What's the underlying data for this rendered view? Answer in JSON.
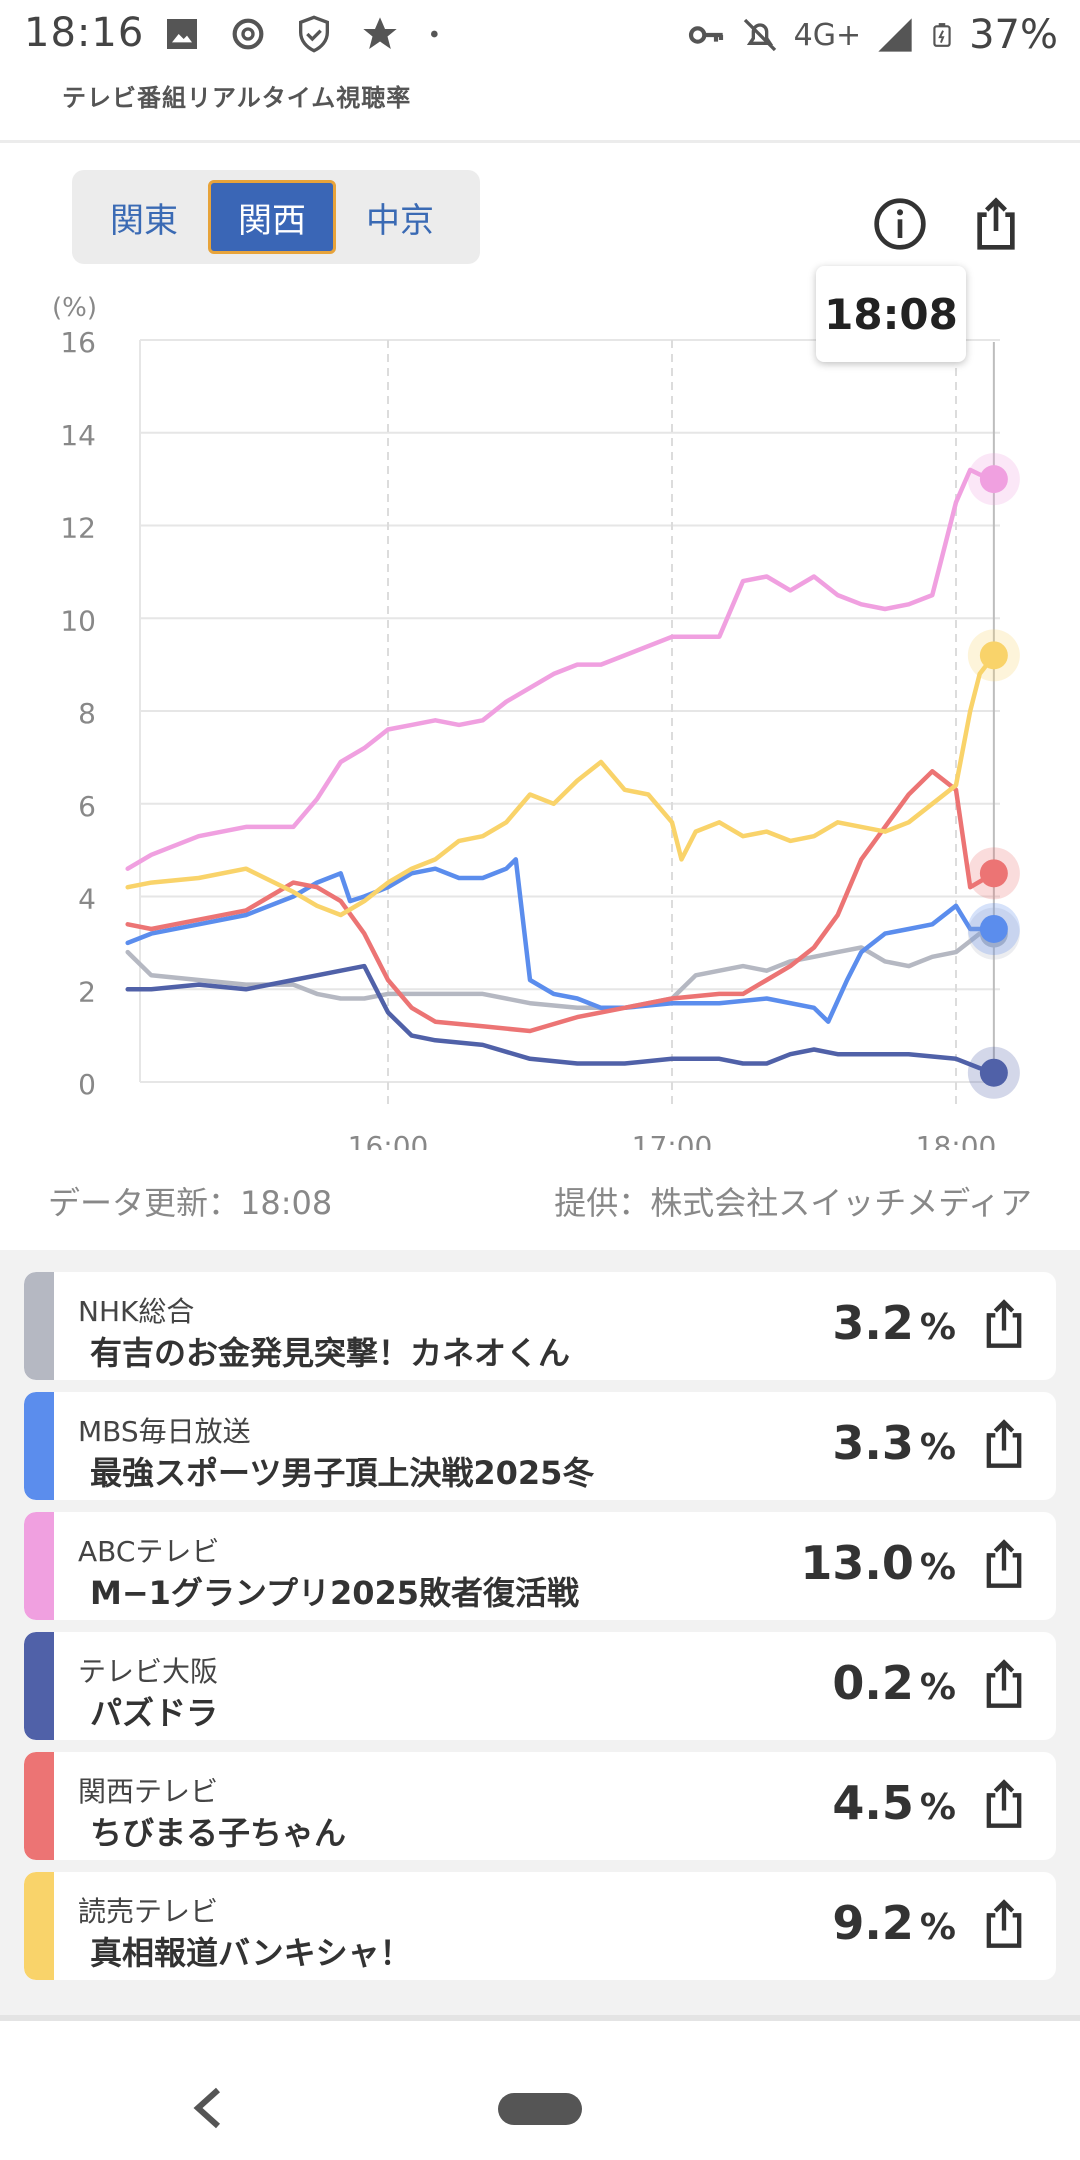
{
  "status_bar": {
    "time": "18:16",
    "network": "4G+",
    "battery": "37%",
    "icons": [
      "image-icon",
      "threads-icon",
      "shield-icon",
      "star-icon",
      "dot-icon",
      "key-icon",
      "bell-off-icon",
      "signal-icon",
      "battery-icon"
    ]
  },
  "header": {
    "subtitle": "テレビ番組リアルタイム視聴率"
  },
  "regions": {
    "tabs": [
      "関東",
      "関西",
      "中京"
    ],
    "selected": "関西"
  },
  "chart_actions": {
    "icons": [
      "info-icon",
      "share-icon"
    ]
  },
  "tooltip": {
    "time": "18:08"
  },
  "chart_data": {
    "type": "line",
    "unit_label": "(%)",
    "x_ticks": [
      "16:00",
      "17:00",
      "18:00"
    ],
    "x_range": [
      "15:05",
      "18:08"
    ],
    "y_ticks": [
      "0",
      "2",
      "4",
      "6",
      "8",
      "10",
      "12",
      "14",
      "16"
    ],
    "ylim": [
      0,
      16
    ],
    "grid": true,
    "current_time": "18:08",
    "series": [
      {
        "name": "NHK総合",
        "color": "#b5b8c2",
        "points": [
          [
            "15:05",
            2.8
          ],
          [
            "15:10",
            2.3
          ],
          [
            "15:20",
            2.2
          ],
          [
            "15:30",
            2.1
          ],
          [
            "15:40",
            2.1
          ],
          [
            "15:45",
            1.9
          ],
          [
            "15:50",
            1.8
          ],
          [
            "15:55",
            1.8
          ],
          [
            "16:00",
            1.9
          ],
          [
            "16:05",
            1.9
          ],
          [
            "16:10",
            1.9
          ],
          [
            "16:15",
            1.9
          ],
          [
            "16:20",
            1.9
          ],
          [
            "16:30",
            1.7
          ],
          [
            "16:40",
            1.6
          ],
          [
            "16:50",
            1.6
          ],
          [
            "17:00",
            1.8
          ],
          [
            "17:05",
            2.3
          ],
          [
            "17:10",
            2.4
          ],
          [
            "17:15",
            2.5
          ],
          [
            "17:20",
            2.4
          ],
          [
            "17:25",
            2.6
          ],
          [
            "17:30",
            2.7
          ],
          [
            "17:35",
            2.8
          ],
          [
            "17:40",
            2.9
          ],
          [
            "17:45",
            2.6
          ],
          [
            "17:50",
            2.5
          ],
          [
            "17:55",
            2.7
          ],
          [
            "18:00",
            2.8
          ],
          [
            "18:05",
            3.2
          ],
          [
            "18:08",
            3.2
          ]
        ]
      },
      {
        "name": "MBS毎日放送",
        "color": "#5b8ded",
        "points": [
          [
            "15:05",
            3.0
          ],
          [
            "15:10",
            3.2
          ],
          [
            "15:20",
            3.4
          ],
          [
            "15:30",
            3.6
          ],
          [
            "15:40",
            4.0
          ],
          [
            "15:45",
            4.3
          ],
          [
            "15:50",
            4.5
          ],
          [
            "15:52",
            3.9
          ],
          [
            "15:55",
            4.0
          ],
          [
            "16:00",
            4.2
          ],
          [
            "16:05",
            4.5
          ],
          [
            "16:10",
            4.6
          ],
          [
            "16:15",
            4.4
          ],
          [
            "16:20",
            4.4
          ],
          [
            "16:25",
            4.6
          ],
          [
            "16:27",
            4.8
          ],
          [
            "16:30",
            2.2
          ],
          [
            "16:35",
            1.9
          ],
          [
            "16:40",
            1.8
          ],
          [
            "16:45",
            1.6
          ],
          [
            "16:50",
            1.6
          ],
          [
            "17:00",
            1.7
          ],
          [
            "17:10",
            1.7
          ],
          [
            "17:20",
            1.8
          ],
          [
            "17:30",
            1.6
          ],
          [
            "17:33",
            1.3
          ],
          [
            "17:37",
            2.2
          ],
          [
            "17:40",
            2.8
          ],
          [
            "17:45",
            3.2
          ],
          [
            "17:50",
            3.3
          ],
          [
            "17:55",
            3.4
          ],
          [
            "18:00",
            3.8
          ],
          [
            "18:03",
            3.3
          ],
          [
            "18:08",
            3.3
          ]
        ]
      },
      {
        "name": "ABCテレビ",
        "color": "#f0a0e0",
        "points": [
          [
            "15:05",
            4.6
          ],
          [
            "15:10",
            4.9
          ],
          [
            "15:20",
            5.3
          ],
          [
            "15:25",
            5.4
          ],
          [
            "15:30",
            5.5
          ],
          [
            "15:35",
            5.5
          ],
          [
            "15:40",
            5.5
          ],
          [
            "15:45",
            6.1
          ],
          [
            "15:50",
            6.9
          ],
          [
            "15:55",
            7.2
          ],
          [
            "16:00",
            7.6
          ],
          [
            "16:05",
            7.7
          ],
          [
            "16:10",
            7.8
          ],
          [
            "16:15",
            7.7
          ],
          [
            "16:20",
            7.8
          ],
          [
            "16:25",
            8.2
          ],
          [
            "16:30",
            8.5
          ],
          [
            "16:35",
            8.8
          ],
          [
            "16:40",
            9.0
          ],
          [
            "16:45",
            9.0
          ],
          [
            "16:50",
            9.2
          ],
          [
            "17:00",
            9.6
          ],
          [
            "17:05",
            9.6
          ],
          [
            "17:10",
            9.6
          ],
          [
            "17:15",
            10.8
          ],
          [
            "17:20",
            10.9
          ],
          [
            "17:25",
            10.6
          ],
          [
            "17:30",
            10.9
          ],
          [
            "17:35",
            10.5
          ],
          [
            "17:40",
            10.3
          ],
          [
            "17:45",
            10.2
          ],
          [
            "17:50",
            10.3
          ],
          [
            "17:55",
            10.5
          ],
          [
            "18:00",
            12.5
          ],
          [
            "18:03",
            13.2
          ],
          [
            "18:05",
            13.1
          ],
          [
            "18:08",
            13.0
          ]
        ]
      },
      {
        "name": "テレビ大阪",
        "color": "#5061a8",
        "points": [
          [
            "15:05",
            2.0
          ],
          [
            "15:10",
            2.0
          ],
          [
            "15:20",
            2.1
          ],
          [
            "15:30",
            2.0
          ],
          [
            "15:40",
            2.2
          ],
          [
            "15:50",
            2.4
          ],
          [
            "15:55",
            2.5
          ],
          [
            "16:00",
            1.5
          ],
          [
            "16:05",
            1.0
          ],
          [
            "16:10",
            0.9
          ],
          [
            "16:20",
            0.8
          ],
          [
            "16:30",
            0.5
          ],
          [
            "16:40",
            0.4
          ],
          [
            "16:50",
            0.4
          ],
          [
            "17:00",
            0.5
          ],
          [
            "17:10",
            0.5
          ],
          [
            "17:15",
            0.4
          ],
          [
            "17:20",
            0.4
          ],
          [
            "17:25",
            0.6
          ],
          [
            "17:30",
            0.7
          ],
          [
            "17:35",
            0.6
          ],
          [
            "17:40",
            0.6
          ],
          [
            "17:50",
            0.6
          ],
          [
            "18:00",
            0.5
          ],
          [
            "18:05",
            0.3
          ],
          [
            "18:08",
            0.2
          ]
        ]
      },
      {
        "name": "関西テレビ",
        "color": "#ec7474",
        "points": [
          [
            "15:05",
            3.4
          ],
          [
            "15:10",
            3.3
          ],
          [
            "15:20",
            3.5
          ],
          [
            "15:30",
            3.7
          ],
          [
            "15:35",
            4.0
          ],
          [
            "15:40",
            4.3
          ],
          [
            "15:45",
            4.2
          ],
          [
            "15:50",
            3.9
          ],
          [
            "15:55",
            3.2
          ],
          [
            "16:00",
            2.2
          ],
          [
            "16:05",
            1.6
          ],
          [
            "16:10",
            1.3
          ],
          [
            "16:20",
            1.2
          ],
          [
            "16:30",
            1.1
          ],
          [
            "16:40",
            1.4
          ],
          [
            "16:50",
            1.6
          ],
          [
            "17:00",
            1.8
          ],
          [
            "17:10",
            1.9
          ],
          [
            "17:15",
            1.9
          ],
          [
            "17:20",
            2.2
          ],
          [
            "17:25",
            2.5
          ],
          [
            "17:30",
            2.9
          ],
          [
            "17:35",
            3.6
          ],
          [
            "17:40",
            4.8
          ],
          [
            "17:45",
            5.5
          ],
          [
            "17:50",
            6.2
          ],
          [
            "17:55",
            6.7
          ],
          [
            "18:00",
            6.3
          ],
          [
            "18:03",
            4.2
          ],
          [
            "18:08",
            4.5
          ]
        ]
      },
      {
        "name": "読売テレビ",
        "color": "#f9d36a",
        "points": [
          [
            "15:05",
            4.2
          ],
          [
            "15:10",
            4.3
          ],
          [
            "15:20",
            4.4
          ],
          [
            "15:30",
            4.6
          ],
          [
            "15:40",
            4.1
          ],
          [
            "15:45",
            3.8
          ],
          [
            "15:50",
            3.6
          ],
          [
            "15:55",
            3.9
          ],
          [
            "16:00",
            4.3
          ],
          [
            "16:05",
            4.6
          ],
          [
            "16:10",
            4.8
          ],
          [
            "16:15",
            5.2
          ],
          [
            "16:20",
            5.3
          ],
          [
            "16:25",
            5.6
          ],
          [
            "16:30",
            6.2
          ],
          [
            "16:35",
            6.0
          ],
          [
            "16:40",
            6.5
          ],
          [
            "16:45",
            6.9
          ],
          [
            "16:50",
            6.3
          ],
          [
            "16:55",
            6.2
          ],
          [
            "17:00",
            5.6
          ],
          [
            "17:02",
            4.8
          ],
          [
            "17:05",
            5.4
          ],
          [
            "17:10",
            5.6
          ],
          [
            "17:15",
            5.3
          ],
          [
            "17:20",
            5.4
          ],
          [
            "17:25",
            5.2
          ],
          [
            "17:30",
            5.3
          ],
          [
            "17:35",
            5.6
          ],
          [
            "17:40",
            5.5
          ],
          [
            "17:45",
            5.4
          ],
          [
            "17:50",
            5.6
          ],
          [
            "17:55",
            6.0
          ],
          [
            "18:00",
            6.4
          ],
          [
            "18:03",
            8.0
          ],
          [
            "18:05",
            8.8
          ],
          [
            "18:08",
            9.2
          ]
        ]
      }
    ]
  },
  "chart_footer": {
    "updated": "データ更新：18:08",
    "provider": "提供：株式会社スイッチメディア"
  },
  "channels": [
    {
      "station": "NHK総合",
      "program": "有吉のお金発見突撃！カネオくん",
      "rating": "3.2",
      "unit": "%",
      "color": "#b5b8c2"
    },
    {
      "station": "MBS毎日放送",
      "program": "最強スポーツ男子頂上決戦2025冬",
      "rating": "3.3",
      "unit": "%",
      "color": "#5b8ded"
    },
    {
      "station": "ABCテレビ",
      "program": "M−1グランプリ2025敗者復活戦",
      "rating": "13.0",
      "unit": "%",
      "color": "#f0a0e0"
    },
    {
      "station": "テレビ大阪",
      "program": "パズドラ",
      "rating": "0.2",
      "unit": "%",
      "color": "#5061a8"
    },
    {
      "station": "関西テレビ",
      "program": "ちびまる子ちゃん",
      "rating": "4.5",
      "unit": "%",
      "color": "#ec7474"
    },
    {
      "station": "読売テレビ",
      "program": "真相報道バンキシャ！",
      "rating": "9.2",
      "unit": "%",
      "color": "#f9d36a"
    }
  ],
  "nav": {
    "icons": [
      "back-icon",
      "home-pill-icon"
    ]
  }
}
